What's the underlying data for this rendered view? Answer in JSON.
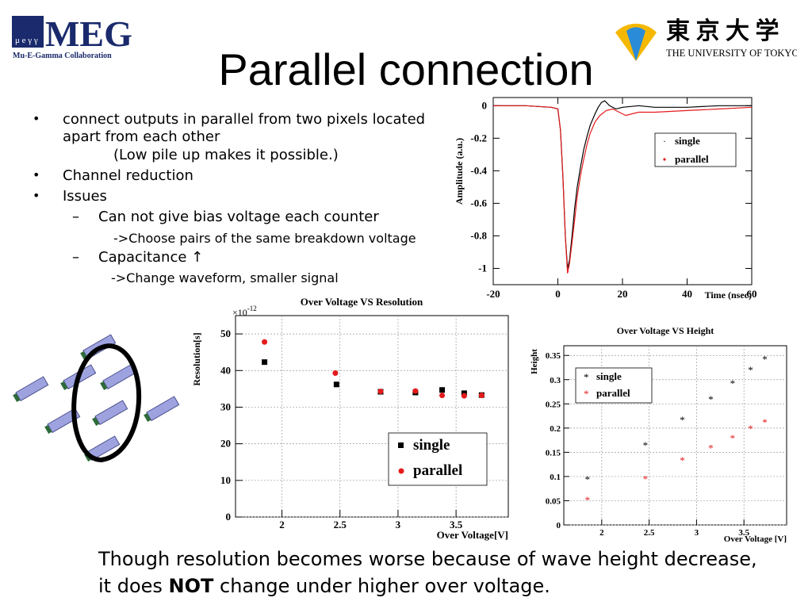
{
  "slide": {
    "title": "Parallel connection",
    "bullets": [
      {
        "level": 1,
        "text": "connect outputs in parallel from two pixels located apart from each other"
      },
      {
        "level": 3,
        "text": "(Low pile up makes it possible.)"
      },
      {
        "level": 1,
        "text": "Channel reduction"
      },
      {
        "level": 1,
        "text": "Issues"
      },
      {
        "level": 2,
        "text": "Can not give bias voltage each counter"
      },
      {
        "level": 3,
        "text": "->Choose pairs of  the same breakdown voltage"
      },
      {
        "level": 2,
        "text": "Capacitance ↑"
      },
      {
        "level": 3,
        "text": "->Change waveform, smaller signal"
      }
    ],
    "conclusion_line1": "Though resolution becomes worse because of wave height decrease,",
    "conclusion_line2_pre": "it does ",
    "conclusion_line2_bold": "NOT",
    "conclusion_line2_post": " change under higher over voltage."
  },
  "logos": {
    "meg_text": "MEG",
    "meg_sub": "Mu-E-Gamma Collaboration",
    "meg_glyph": "μ e γ γ",
    "ut_kanji": "東 京 大 学",
    "ut_name": "THE UNIVERSITY OF TOKYO"
  },
  "colors": {
    "single": "#000000",
    "parallel": "#e41a1c",
    "axis": "#000000",
    "grid": "#9a9a9a",
    "pixel_fill": "#9ea3e0"
  },
  "chart_data": [
    {
      "type": "line",
      "title": "",
      "xlabel": "Time (nsec)",
      "ylabel": "Amplitude (a.u.)",
      "xlim": [
        -20,
        60
      ],
      "ylim": [
        -1.1,
        0.05
      ],
      "xticks": [
        -20,
        0,
        20,
        40,
        60
      ],
      "yticks": [
        0,
        -0.2,
        -0.4,
        -0.6,
        -0.8,
        -1
      ],
      "ytick_labels": [
        "0",
        "-0.2",
        "-0.4",
        "-0.6",
        "-0.8",
        "-1"
      ],
      "legend": "center-right",
      "series": [
        {
          "name": "single",
          "x": [
            -20,
            -10,
            -2,
            0,
            0.8,
            1.6,
            2.3,
            3.0,
            3.6,
            4.4,
            5.2,
            6.0,
            7.0,
            8.0,
            9.0,
            10.0,
            11.5,
            12.5,
            13.5,
            14.5,
            16,
            18,
            20,
            25,
            30,
            40,
            50,
            60
          ],
          "y": [
            0.0,
            0.0,
            -0.01,
            -0.02,
            -0.15,
            -0.45,
            -0.8,
            -1.0,
            -0.95,
            -0.8,
            -0.63,
            -0.5,
            -0.38,
            -0.27,
            -0.19,
            -0.12,
            -0.05,
            -0.01,
            0.02,
            0.03,
            0.0,
            -0.02,
            -0.01,
            0.0,
            -0.01,
            -0.01,
            0.0,
            0.0
          ]
        },
        {
          "name": "parallel",
          "x": [
            -20,
            -10,
            -2,
            0,
            0.8,
            1.6,
            2.3,
            3.0,
            3.6,
            4.4,
            5.2,
            6.0,
            7.0,
            8.0,
            9.0,
            10.0,
            11.5,
            13,
            15,
            17,
            19,
            21,
            23,
            25,
            30,
            40,
            50,
            60
          ],
          "y": [
            0.0,
            0.0,
            -0.01,
            -0.02,
            -0.15,
            -0.45,
            -0.8,
            -1.03,
            -0.97,
            -0.84,
            -0.7,
            -0.56,
            -0.43,
            -0.33,
            -0.24,
            -0.17,
            -0.1,
            -0.06,
            -0.03,
            -0.02,
            -0.04,
            -0.06,
            -0.05,
            -0.04,
            -0.04,
            -0.03,
            -0.02,
            -0.01
          ]
        }
      ]
    },
    {
      "type": "scatter",
      "title": "Over Voltage VS Resolution",
      "xlabel": "Over Voltage[V]",
      "ylabel": "Resolution[s]",
      "y_exponent": "×10",
      "y_exponent_sup": "-12",
      "xlim": [
        1.6,
        3.95
      ],
      "ylim": [
        0,
        55
      ],
      "xticks": [
        2,
        2.5,
        3,
        3.5
      ],
      "yticks": [
        0,
        10,
        20,
        30,
        40,
        50
      ],
      "legend": "bottom-right",
      "series": [
        {
          "name": "single",
          "marker": "square",
          "x": [
            1.85,
            2.47,
            2.85,
            3.15,
            3.38,
            3.57,
            3.72
          ],
          "y": [
            42.3,
            36.2,
            34.2,
            34.0,
            34.7,
            33.8,
            33.3
          ]
        },
        {
          "name": "parallel",
          "marker": "circle",
          "x": [
            1.85,
            2.46,
            2.85,
            3.15,
            3.38,
            3.57,
            3.72
          ],
          "y": [
            47.8,
            39.3,
            34.3,
            34.4,
            33.2,
            33.1,
            33.2
          ]
        }
      ]
    },
    {
      "type": "scatter",
      "title": "Over Voltage VS Height",
      "xlabel": "Over Voltage [V]",
      "ylabel": "Height",
      "xlim": [
        1.6,
        3.95
      ],
      "ylim": [
        0,
        0.37
      ],
      "xticks": [
        2,
        2.5,
        3,
        3.5
      ],
      "yticks": [
        0,
        0.05,
        0.1,
        0.15,
        0.2,
        0.25,
        0.3,
        0.35
      ],
      "legend": "top-left",
      "series": [
        {
          "name": "single",
          "marker": "star",
          "x": [
            1.85,
            2.46,
            2.85,
            3.15,
            3.38,
            3.57,
            3.72
          ],
          "y": [
            0.095,
            0.165,
            0.218,
            0.26,
            0.293,
            0.321,
            0.343
          ]
        },
        {
          "name": "parallel",
          "marker": "star",
          "x": [
            1.85,
            2.46,
            2.85,
            3.15,
            3.38,
            3.57,
            3.72
          ],
          "y": [
            0.052,
            0.096,
            0.134,
            0.16,
            0.18,
            0.2,
            0.213
          ]
        }
      ]
    }
  ]
}
